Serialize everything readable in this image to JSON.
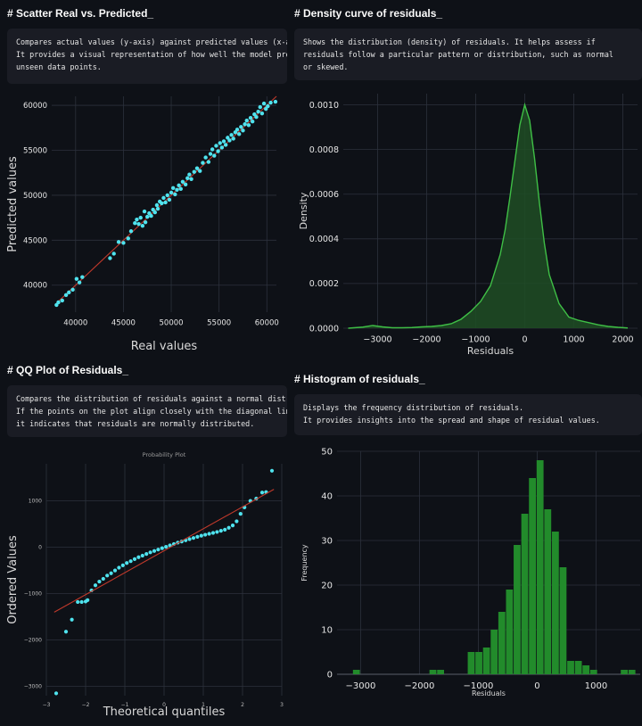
{
  "panels": {
    "scatter": {
      "heading": "# Scatter Real vs. Predicted_",
      "description": "Compares actual values (y-axis) against predicted values (x-axis).\nIt provides a visual representation of how well the model predicts\nunseen data points."
    },
    "density": {
      "heading": "# Density curve of residuals_",
      "description": "Shows the distribution (density) of residuals. It helps assess if\nresiduals follow a particular pattern or distribution, such as normal\nor skewed."
    },
    "qq": {
      "heading": "# QQ Plot of Residuals_",
      "description": "Compares the distribution of residuals against a normal distribution.\nIf the points on the plot align closely with the diagonal line,\nit indicates that residuals are normally distributed."
    },
    "hist": {
      "heading": "# Histogram of residuals_",
      "description": "Displays the frequency distribution of residuals.\nIt provides insights into the spread and shape of residual values."
    }
  },
  "chart_data": [
    {
      "id": "scatter",
      "type": "scatter",
      "title": "",
      "xlabel": "Real values",
      "ylabel": "Predicted values",
      "xlim": [
        37500,
        61000
      ],
      "ylim": [
        37000,
        61000
      ],
      "xticks": [
        40000,
        45000,
        50000,
        55000,
        60000
      ],
      "yticks": [
        40000,
        45000,
        50000,
        55000,
        60000
      ],
      "grid": true,
      "point_color": "#4fe3ee",
      "reference_line": {
        "from": [
          38000,
          38000
        ],
        "to": [
          61000,
          61000
        ],
        "color": "#c0392b"
      },
      "points": [
        [
          38000,
          37800
        ],
        [
          38200,
          38100
        ],
        [
          38600,
          38300
        ],
        [
          39000,
          38900
        ],
        [
          39300,
          39200
        ],
        [
          39700,
          39500
        ],
        [
          40100,
          40700
        ],
        [
          40400,
          40300
        ],
        [
          40700,
          40900
        ],
        [
          43600,
          43000
        ],
        [
          44000,
          43500
        ],
        [
          44500,
          44800
        ],
        [
          45000,
          44700
        ],
        [
          45500,
          45200
        ],
        [
          45800,
          46000
        ],
        [
          46200,
          46900
        ],
        [
          46400,
          47300
        ],
        [
          46600,
          46800
        ],
        [
          46800,
          47500
        ],
        [
          47000,
          46600
        ],
        [
          47200,
          48200
        ],
        [
          47300,
          47000
        ],
        [
          47500,
          47600
        ],
        [
          47700,
          48000
        ],
        [
          47900,
          47700
        ],
        [
          48100,
          48400
        ],
        [
          48300,
          48100
        ],
        [
          48500,
          48900
        ],
        [
          48600,
          48500
        ],
        [
          48800,
          49300
        ],
        [
          49000,
          49100
        ],
        [
          49200,
          49700
        ],
        [
          49400,
          49200
        ],
        [
          49600,
          50000
        ],
        [
          49800,
          49500
        ],
        [
          50000,
          50300
        ],
        [
          50200,
          50800
        ],
        [
          50400,
          50100
        ],
        [
          50600,
          50600
        ],
        [
          50800,
          51100
        ],
        [
          51000,
          50700
        ],
        [
          51200,
          51500
        ],
        [
          51500,
          51200
        ],
        [
          51700,
          51900
        ],
        [
          51900,
          52300
        ],
        [
          52100,
          51800
        ],
        [
          52400,
          52600
        ],
        [
          52700,
          53000
        ],
        [
          53000,
          52700
        ],
        [
          53300,
          53600
        ],
        [
          53600,
          54200
        ],
        [
          53900,
          53700
        ],
        [
          54100,
          54600
        ],
        [
          54300,
          55100
        ],
        [
          54500,
          54400
        ],
        [
          54700,
          55500
        ],
        [
          54900,
          54900
        ],
        [
          55100,
          55800
        ],
        [
          55300,
          55300
        ],
        [
          55500,
          56000
        ],
        [
          55700,
          55600
        ],
        [
          55900,
          56400
        ],
        [
          56100,
          56100
        ],
        [
          56300,
          56700
        ],
        [
          56500,
          56300
        ],
        [
          56700,
          57000
        ],
        [
          56900,
          57300
        ],
        [
          57100,
          56800
        ],
        [
          57300,
          57600
        ],
        [
          57500,
          57200
        ],
        [
          57700,
          57900
        ],
        [
          57900,
          58300
        ],
        [
          58100,
          57800
        ],
        [
          58300,
          58600
        ],
        [
          58500,
          58200
        ],
        [
          58700,
          59000
        ],
        [
          58900,
          58700
        ],
        [
          59100,
          59300
        ],
        [
          59300,
          59800
        ],
        [
          59500,
          59100
        ],
        [
          59700,
          60200
        ],
        [
          59900,
          59600
        ],
        [
          60100,
          59900
        ],
        [
          60400,
          60300
        ],
        [
          60900,
          60400
        ]
      ]
    },
    {
      "id": "density",
      "type": "area",
      "title": "",
      "xlabel": "Residuals",
      "ylabel": "Density",
      "xlim": [
        -3700,
        2300
      ],
      "ylim": [
        0,
        0.00105
      ],
      "xticks": [
        -3000,
        -2000,
        -1000,
        0,
        1000,
        2000
      ],
      "yticks": [
        0.0,
        0.0002,
        0.0004,
        0.0006,
        0.0008,
        0.001
      ],
      "ytick_labels": [
        "0.0000",
        "0.0002",
        "0.0004",
        "0.0006",
        "0.0008",
        "0.0010"
      ],
      "grid": true,
      "line_color": "#3fbf46",
      "fill_color": "#1f4d24",
      "x": [
        -3600,
        -3300,
        -3100,
        -2900,
        -2700,
        -2500,
        -2300,
        -2100,
        -1900,
        -1700,
        -1500,
        -1300,
        -1100,
        -900,
        -700,
        -500,
        -400,
        -300,
        -200,
        -100,
        0,
        100,
        200,
        300,
        400,
        500,
        700,
        900,
        1100,
        1300,
        1500,
        1700,
        1900,
        2100
      ],
      "y": [
        0.0,
        5e-06,
        1.2e-05,
        6e-06,
        2e-06,
        2e-06,
        3e-06,
        6e-06,
        8e-06,
        1.2e-05,
        2e-05,
        4e-05,
        7.5e-05,
        0.00012,
        0.00019,
        0.00033,
        0.00044,
        0.00059,
        0.00075,
        0.00091,
        0.001,
        0.00093,
        0.00076,
        0.00056,
        0.00038,
        0.00024,
        0.00011,
        5e-05,
        3.5e-05,
        2.5e-05,
        1.5e-05,
        8e-06,
        4e-06,
        1e-06
      ]
    },
    {
      "id": "qq",
      "type": "scatter",
      "title": "Probability Plot",
      "xlabel": "Theoretical quantiles",
      "ylabel": "Ordered Values",
      "xlim": [
        -3.0,
        3.0
      ],
      "ylim": [
        -3200,
        1800
      ],
      "xticks": [
        -3,
        -2,
        -1,
        0,
        1,
        2,
        3
      ],
      "yticks": [
        -3000,
        -2000,
        -1000,
        0,
        1000
      ],
      "grid": true,
      "point_color": "#4fe3ee",
      "reference_line": {
        "from": [
          -2.8,
          -1400
        ],
        "to": [
          2.8,
          1250
        ],
        "color": "#c0392b"
      },
      "points": [
        [
          -2.75,
          -3150
        ],
        [
          -2.5,
          -1820
        ],
        [
          -2.35,
          -1560
        ],
        [
          -2.2,
          -1180
        ],
        [
          -2.1,
          -1180
        ],
        [
          -2.0,
          -1170
        ],
        [
          -1.95,
          -1140
        ],
        [
          -1.85,
          -930
        ],
        [
          -1.75,
          -820
        ],
        [
          -1.65,
          -740
        ],
        [
          -1.55,
          -680
        ],
        [
          -1.45,
          -610
        ],
        [
          -1.35,
          -560
        ],
        [
          -1.25,
          -500
        ],
        [
          -1.15,
          -440
        ],
        [
          -1.05,
          -390
        ],
        [
          -0.95,
          -340
        ],
        [
          -0.85,
          -300
        ],
        [
          -0.75,
          -255
        ],
        [
          -0.65,
          -215
        ],
        [
          -0.55,
          -180
        ],
        [
          -0.45,
          -145
        ],
        [
          -0.35,
          -110
        ],
        [
          -0.25,
          -80
        ],
        [
          -0.15,
          -50
        ],
        [
          -0.05,
          -20
        ],
        [
          0.05,
          10
        ],
        [
          0.15,
          40
        ],
        [
          0.25,
          70
        ],
        [
          0.35,
          100
        ],
        [
          0.45,
          125
        ],
        [
          0.55,
          150
        ],
        [
          0.65,
          175
        ],
        [
          0.75,
          200
        ],
        [
          0.85,
          225
        ],
        [
          0.95,
          250
        ],
        [
          1.05,
          270
        ],
        [
          1.15,
          290
        ],
        [
          1.25,
          310
        ],
        [
          1.35,
          330
        ],
        [
          1.45,
          355
        ],
        [
          1.55,
          380
        ],
        [
          1.65,
          420
        ],
        [
          1.75,
          470
        ],
        [
          1.85,
          560
        ],
        [
          1.95,
          720
        ],
        [
          2.05,
          860
        ],
        [
          2.2,
          1000
        ],
        [
          2.35,
          1050
        ],
        [
          2.5,
          1180
        ],
        [
          2.6,
          1190
        ],
        [
          2.75,
          1650
        ]
      ]
    },
    {
      "id": "hist",
      "type": "bar",
      "title": "",
      "xlabel": "Residuals",
      "ylabel": "Frequency",
      "xlim": [
        -3400,
        1750
      ],
      "ylim": [
        0,
        50
      ],
      "xticks": [
        -3000,
        -2000,
        -1000,
        0,
        1000
      ],
      "yticks": [
        0,
        10,
        20,
        30,
        40,
        50
      ],
      "grid": true,
      "bar_color": "#228b2b",
      "bin_width": 130,
      "bin_starts": [
        -3130,
        -1830,
        -1700,
        -1180,
        -1050,
        -920,
        -790,
        -660,
        -530,
        -400,
        -270,
        -140,
        -10,
        120,
        250,
        380,
        510,
        640,
        770,
        900,
        1420,
        1550
      ],
      "values": [
        1,
        1,
        1,
        5,
        5,
        6,
        10,
        14,
        19,
        29,
        36,
        44,
        48,
        37,
        32,
        24,
        3,
        3,
        2,
        1,
        1,
        1
      ]
    }
  ]
}
